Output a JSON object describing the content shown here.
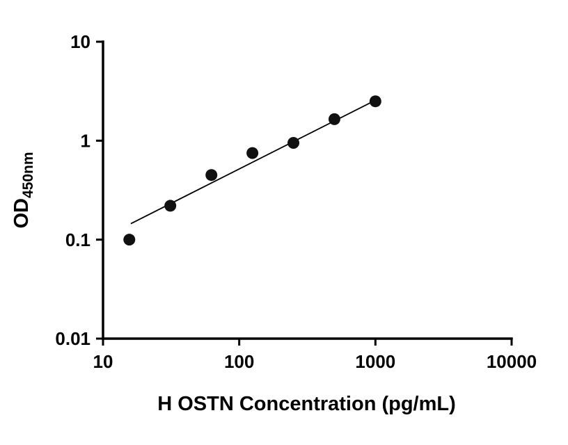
{
  "chart_data": {
    "type": "scatter",
    "title": "",
    "xlabel": "H OSTN Concentration (pg/mL)",
    "ylabel_main": "OD",
    "ylabel_sub": "450nm",
    "x_scale": "log",
    "y_scale": "log",
    "xlim": [
      10,
      10000
    ],
    "ylim": [
      0.01,
      10
    ],
    "grid": false,
    "legend": "none",
    "x_ticks": [
      {
        "value": 10,
        "label": "10"
      },
      {
        "value": 100,
        "label": "100"
      },
      {
        "value": 1000,
        "label": "1000"
      },
      {
        "value": 10000,
        "label": "10000"
      }
    ],
    "y_ticks": [
      {
        "value": 0.01,
        "label": "0.01"
      },
      {
        "value": 0.1,
        "label": "0.1"
      },
      {
        "value": 1,
        "label": "1"
      },
      {
        "value": 10,
        "label": "10"
      }
    ],
    "points": [
      {
        "x": 15.6,
        "y": 0.1
      },
      {
        "x": 31.2,
        "y": 0.22
      },
      {
        "x": 62.5,
        "y": 0.45
      },
      {
        "x": 125,
        "y": 0.75
      },
      {
        "x": 250,
        "y": 0.95
      },
      {
        "x": 500,
        "y": 1.65
      },
      {
        "x": 1000,
        "y": 2.5
      }
    ],
    "trendline": {
      "x1": 16,
      "y1": 0.145,
      "x2": 1020,
      "y2": 2.6
    },
    "colors": {
      "axis": "#000000",
      "point": "#111111",
      "trend": "#000000",
      "background": "#ffffff"
    }
  }
}
